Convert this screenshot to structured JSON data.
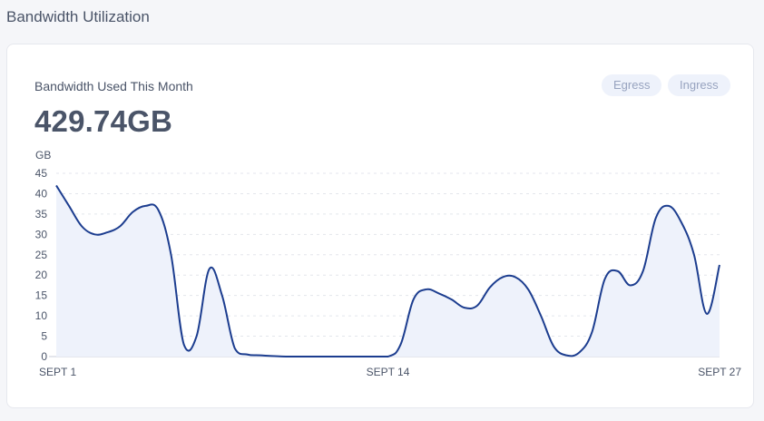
{
  "header": {
    "title": "Bandwidth Utilization"
  },
  "card": {
    "label": "Bandwidth Used This Month",
    "total": "429.74GB",
    "toggles": [
      {
        "label": "Egress"
      },
      {
        "label": "Ingress"
      }
    ]
  },
  "chart_data": {
    "type": "area",
    "ylabel": "GB",
    "ylim": [
      0,
      45
    ],
    "yticks": [
      0,
      5,
      10,
      15,
      20,
      25,
      30,
      35,
      40,
      45
    ],
    "grid": true,
    "xtick_labels": [
      "SEPT 1",
      "SEPT 14",
      "SEPT 27"
    ],
    "xtick_positions": [
      1,
      14,
      27
    ],
    "x": [
      1,
      1.5,
      2,
      2.5,
      3,
      3.5,
      4,
      4.5,
      5,
      5.5,
      6,
      6.5,
      7,
      7.5,
      8,
      8.5,
      9,
      10,
      11,
      12,
      13,
      14,
      14.5,
      15,
      15.5,
      16,
      16.5,
      17,
      17.5,
      18,
      18.5,
      19,
      19.5,
      20,
      20.5,
      21,
      21.5,
      22,
      22.5,
      23,
      23.5,
      24,
      24.5,
      25,
      25.5,
      26,
      26.5,
      27
    ],
    "values": [
      42,
      37,
      32,
      30,
      30.5,
      32,
      35.5,
      37,
      36,
      25,
      3,
      5,
      21.5,
      15,
      2,
      0.5,
      0.3,
      0,
      0,
      0,
      0,
      0,
      3,
      14,
      16.5,
      15.5,
      14,
      12,
      12.5,
      17,
      19.5,
      19.5,
      16.5,
      10,
      2.5,
      0.3,
      1,
      6,
      19,
      21,
      17.5,
      21,
      34,
      37,
      33,
      25,
      10.5,
      22.5
    ],
    "colors": {
      "line": "#1c3d8f",
      "fill": "#eef2fb",
      "grid": "#e3e6ec",
      "axis": "#c9ced8"
    }
  }
}
